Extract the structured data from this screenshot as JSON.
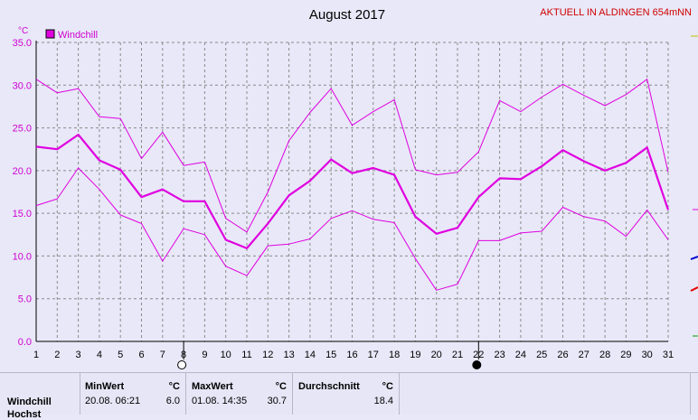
{
  "header": {
    "title": "August 2017",
    "station": "AKTUELL IN ALDINGEN 654mNN"
  },
  "chart_data": {
    "type": "line",
    "title": "August 2017",
    "ylabel": "°C",
    "ylim": [
      0,
      35
    ],
    "yticks": [
      "0.0",
      "5.0",
      "10.0",
      "15.0",
      "20.0",
      "25.0",
      "30.0",
      "35.0"
    ],
    "x": [
      1,
      2,
      3,
      4,
      5,
      6,
      7,
      8,
      9,
      10,
      11,
      12,
      13,
      14,
      15,
      16,
      17,
      18,
      19,
      20,
      21,
      22,
      23,
      24,
      25,
      26,
      27,
      28,
      29,
      30,
      31
    ],
    "legend": [
      {
        "label": "Windchill",
        "color": "#e000e0"
      }
    ],
    "series": [
      {
        "name": "max",
        "values": [
          30.7,
          29.1,
          29.6,
          26.3,
          26.1,
          21.4,
          24.5,
          20.6,
          21.0,
          14.4,
          12.8,
          17.5,
          23.5,
          26.8,
          29.6,
          25.3,
          26.9,
          28.3,
          20.1,
          19.5,
          19.8,
          22.2,
          28.2,
          26.9,
          28.6,
          30.1,
          28.8,
          27.6,
          28.9,
          30.7,
          19.8
        ]
      },
      {
        "name": "avg",
        "values": [
          22.8,
          22.5,
          24.2,
          21.2,
          20.1,
          16.9,
          17.8,
          16.4,
          16.4,
          11.9,
          10.9,
          13.8,
          17.1,
          18.8,
          21.3,
          19.7,
          20.3,
          19.5,
          14.6,
          12.6,
          13.3,
          16.9,
          19.1,
          19.0,
          20.5,
          22.4,
          21.1,
          20.0,
          20.9,
          22.7,
          15.4
        ]
      },
      {
        "name": "min",
        "values": [
          15.9,
          16.7,
          20.3,
          17.8,
          14.8,
          13.8,
          9.4,
          13.2,
          12.5,
          8.8,
          7.7,
          11.2,
          11.4,
          12.0,
          14.4,
          15.3,
          14.3,
          13.9,
          9.7,
          6.0,
          6.7,
          11.8,
          11.8,
          12.7,
          12.9,
          15.7,
          14.6,
          14.1,
          12.3,
          15.4,
          11.9
        ]
      }
    ],
    "grid": true,
    "moon_markers": [
      {
        "day": 8,
        "phase": "full"
      },
      {
        "day": 22,
        "phase": "new"
      }
    ],
    "colors": {
      "line": "#e000e0",
      "background": "#e8e8f8",
      "title_station": "#d00000"
    }
  },
  "stats": {
    "row_label": "Windchill",
    "row_label2": "Hochst",
    "min": {
      "label": "MinWert",
      "unit": "°C",
      "time": "20.08.  06:21",
      "value": "6.0"
    },
    "max": {
      "label": "MaxWert",
      "unit": "°C",
      "time": "01.08.  14:35",
      "value": "30.7"
    },
    "avg": {
      "label": "Durchschnitt",
      "unit": "°C",
      "value": "18.4"
    }
  }
}
